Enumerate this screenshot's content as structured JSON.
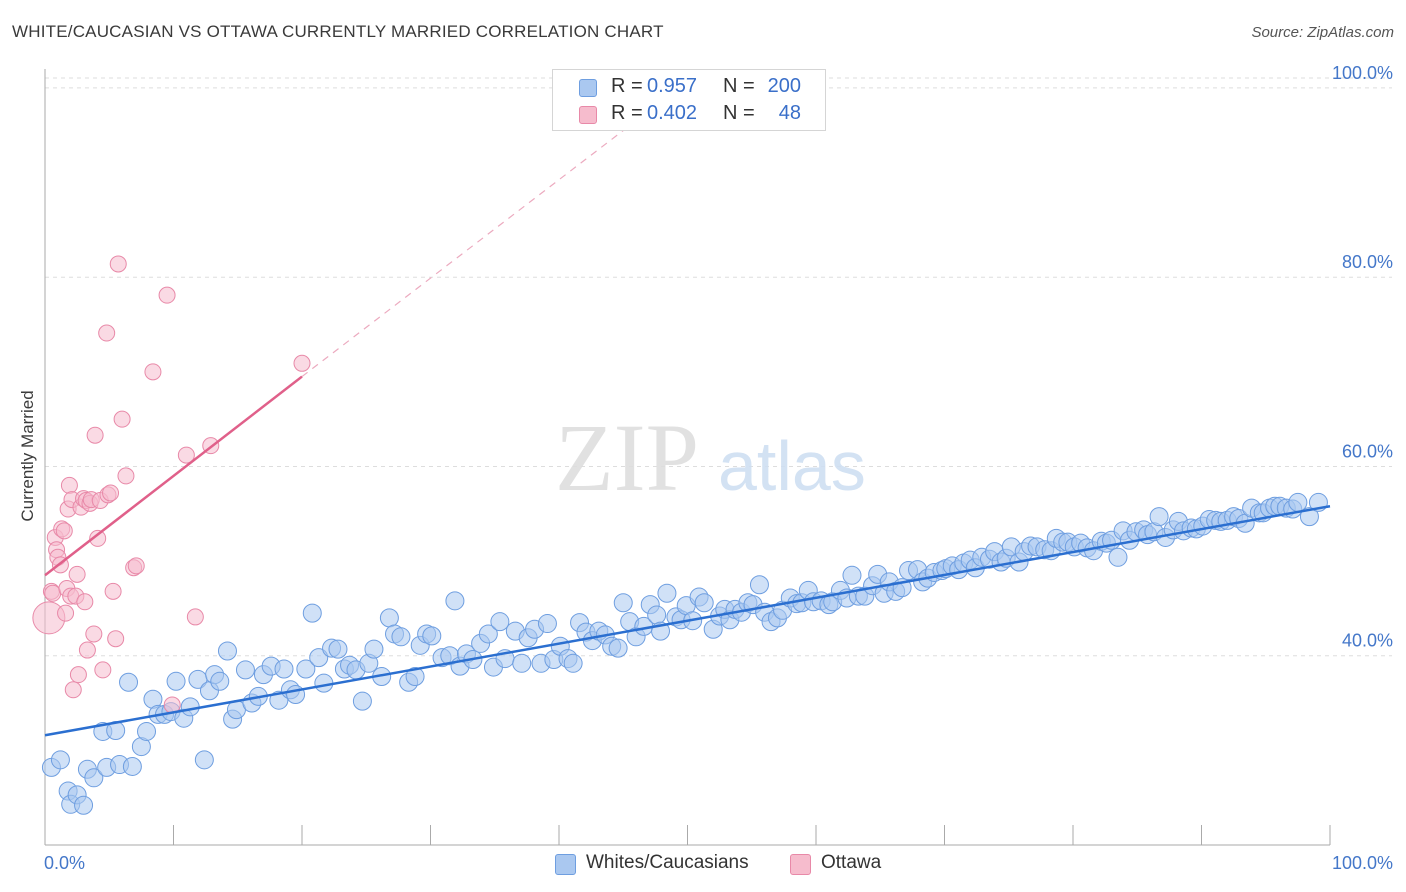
{
  "title": "WHITE/CAUCASIAN VS OTTAWA CURRENTLY MARRIED CORRELATION CHART",
  "source": "Source: ZipAtlas.com",
  "watermark": {
    "zip": "ZIP",
    "atlas": "atlas"
  },
  "legend": {
    "rows": [
      {
        "r_label": "R =",
        "r_value": "0.957",
        "n_label": "N =",
        "n_value": "200"
      },
      {
        "r_label": "R =",
        "r_value": "0.402",
        "n_label": "N =",
        "n_value": "48"
      }
    ]
  },
  "bottom_legend": {
    "series1": "Whites/Caucasians",
    "series2": "Ottawa"
  },
  "colors": {
    "blue_fill": "#aac8f0",
    "blue_stroke": "#6e9ee0",
    "blue_line": "#2b6fd0",
    "pink_fill": "#f6bccd",
    "pink_stroke": "#e889a8",
    "pink_line": "#e0608a",
    "tick_text": "#4477c9",
    "grid": "#dddddd"
  },
  "chart_data": {
    "type": "scatter",
    "title": "WHITE/CAUCASIAN VS OTTAWA CURRENTLY MARRIED CORRELATION CHART",
    "xlabel": "",
    "ylabel": "Currently Married",
    "xlim": [
      0,
      100
    ],
    "ylim": [
      20,
      102
    ],
    "x_tick_labels": [
      "0.0%",
      "100.0%"
    ],
    "y_tick_values": [
      40,
      60,
      80,
      100
    ],
    "y_tick_labels": [
      "40.0%",
      "60.0%",
      "80.0%",
      "100.0%"
    ],
    "grid": true,
    "series": [
      {
        "name": "Whites/Caucasians",
        "r": 0.957,
        "n": 200,
        "trend": {
          "x": [
            0,
            100
          ],
          "y": [
            31.6,
            55.8
          ]
        },
        "points": [
          [
            0.5,
            28.2
          ],
          [
            1.2,
            29.0
          ],
          [
            1.8,
            25.7
          ],
          [
            2.0,
            24.3
          ],
          [
            2.5,
            25.3
          ],
          [
            3.0,
            24.2
          ],
          [
            3.3,
            28.0
          ],
          [
            3.8,
            27.1
          ],
          [
            4.5,
            32.0
          ],
          [
            4.8,
            28.2
          ],
          [
            5.5,
            32.1
          ],
          [
            5.8,
            28.5
          ],
          [
            6.5,
            37.2
          ],
          [
            6.8,
            28.3
          ],
          [
            7.5,
            30.4
          ],
          [
            7.9,
            32.0
          ],
          [
            8.4,
            35.4
          ],
          [
            8.8,
            33.8
          ],
          [
            9.3,
            33.8
          ],
          [
            9.8,
            34.1
          ],
          [
            10.2,
            37.3
          ],
          [
            10.8,
            33.4
          ],
          [
            11.3,
            34.6
          ],
          [
            11.9,
            37.5
          ],
          [
            12.4,
            29.0
          ],
          [
            12.8,
            36.3
          ],
          [
            13.2,
            38.0
          ],
          [
            13.6,
            37.3
          ],
          [
            14.2,
            40.5
          ],
          [
            14.6,
            33.3
          ],
          [
            14.9,
            34.3
          ],
          [
            15.6,
            38.5
          ],
          [
            16.1,
            35.0
          ],
          [
            16.6,
            35.7
          ],
          [
            17.0,
            38.0
          ],
          [
            17.6,
            38.9
          ],
          [
            18.2,
            35.3
          ],
          [
            18.6,
            38.6
          ],
          [
            19.1,
            36.4
          ],
          [
            19.5,
            35.9
          ],
          [
            20.3,
            38.6
          ],
          [
            20.8,
            44.5
          ],
          [
            21.3,
            39.8
          ],
          [
            21.7,
            37.1
          ],
          [
            22.3,
            40.8
          ],
          [
            22.8,
            40.7
          ],
          [
            23.3,
            38.6
          ],
          [
            23.7,
            39.0
          ],
          [
            24.2,
            38.5
          ],
          [
            24.7,
            35.2
          ],
          [
            25.2,
            39.2
          ],
          [
            25.6,
            40.7
          ],
          [
            26.2,
            37.8
          ],
          [
            26.8,
            44.0
          ],
          [
            27.2,
            42.3
          ],
          [
            27.7,
            42.0
          ],
          [
            28.3,
            37.2
          ],
          [
            28.8,
            37.8
          ],
          [
            29.2,
            41.1
          ],
          [
            29.7,
            42.3
          ],
          [
            30.1,
            42.1
          ],
          [
            30.9,
            39.8
          ],
          [
            31.5,
            40.0
          ],
          [
            31.9,
            45.8
          ],
          [
            32.3,
            38.9
          ],
          [
            32.8,
            40.2
          ],
          [
            33.3,
            39.6
          ],
          [
            33.9,
            41.3
          ],
          [
            34.5,
            42.3
          ],
          [
            34.9,
            38.8
          ],
          [
            35.4,
            43.6
          ],
          [
            35.8,
            39.7
          ],
          [
            36.6,
            42.6
          ],
          [
            37.1,
            39.2
          ],
          [
            37.6,
            41.9
          ],
          [
            38.1,
            42.8
          ],
          [
            38.6,
            39.2
          ],
          [
            39.1,
            43.4
          ],
          [
            39.6,
            39.6
          ],
          [
            40.1,
            41.0
          ],
          [
            40.7,
            39.7
          ],
          [
            41.1,
            39.2
          ],
          [
            41.6,
            43.5
          ],
          [
            42.1,
            42.5
          ],
          [
            42.6,
            41.6
          ],
          [
            43.1,
            42.6
          ],
          [
            43.6,
            42.2
          ],
          [
            44.1,
            41.0
          ],
          [
            44.6,
            40.8
          ],
          [
            45.0,
            45.6
          ],
          [
            45.5,
            43.6
          ],
          [
            46.0,
            42.0
          ],
          [
            46.6,
            43.1
          ],
          [
            47.1,
            45.4
          ],
          [
            47.6,
            44.3
          ],
          [
            47.9,
            42.6
          ],
          [
            48.4,
            46.6
          ],
          [
            49.1,
            44.1
          ],
          [
            49.5,
            43.8
          ],
          [
            49.9,
            45.3
          ],
          [
            50.4,
            43.7
          ],
          [
            50.9,
            46.2
          ],
          [
            51.3,
            45.6
          ],
          [
            52.0,
            42.8
          ],
          [
            52.5,
            44.2
          ],
          [
            52.9,
            44.9
          ],
          [
            53.3,
            43.8
          ],
          [
            53.7,
            44.9
          ],
          [
            54.2,
            44.6
          ],
          [
            54.7,
            45.6
          ],
          [
            55.1,
            45.4
          ],
          [
            55.6,
            47.5
          ],
          [
            56.0,
            44.6
          ],
          [
            56.5,
            43.6
          ],
          [
            57.0,
            44.0
          ],
          [
            57.4,
            44.8
          ],
          [
            58.0,
            46.1
          ],
          [
            58.5,
            45.5
          ],
          [
            58.9,
            45.6
          ],
          [
            59.4,
            46.9
          ],
          [
            59.8,
            45.7
          ],
          [
            60.4,
            45.8
          ],
          [
            61.0,
            45.4
          ],
          [
            61.3,
            45.7
          ],
          [
            61.9,
            46.9
          ],
          [
            62.4,
            46.1
          ],
          [
            62.8,
            48.5
          ],
          [
            63.3,
            46.3
          ],
          [
            63.8,
            46.3
          ],
          [
            64.4,
            47.4
          ],
          [
            64.8,
            48.6
          ],
          [
            65.3,
            46.6
          ],
          [
            65.7,
            47.8
          ],
          [
            66.2,
            46.8
          ],
          [
            66.7,
            47.2
          ],
          [
            67.2,
            49.0
          ],
          [
            67.9,
            49.1
          ],
          [
            68.3,
            47.8
          ],
          [
            68.7,
            48.2
          ],
          [
            69.2,
            48.8
          ],
          [
            69.8,
            49.0
          ],
          [
            70.1,
            49.2
          ],
          [
            70.6,
            49.5
          ],
          [
            71.1,
            49.1
          ],
          [
            71.5,
            49.8
          ],
          [
            72.0,
            50.1
          ],
          [
            72.4,
            49.3
          ],
          [
            72.9,
            50.4
          ],
          [
            73.5,
            50.2
          ],
          [
            73.9,
            51.0
          ],
          [
            74.4,
            49.9
          ],
          [
            74.8,
            50.3
          ],
          [
            75.2,
            51.5
          ],
          [
            75.8,
            49.9
          ],
          [
            76.2,
            51.0
          ],
          [
            76.7,
            51.6
          ],
          [
            77.2,
            51.5
          ],
          [
            77.8,
            51.2
          ],
          [
            78.3,
            51.1
          ],
          [
            78.7,
            52.4
          ],
          [
            79.2,
            52.0
          ],
          [
            79.6,
            52.0
          ],
          [
            80.1,
            51.5
          ],
          [
            80.6,
            51.9
          ],
          [
            81.1,
            51.4
          ],
          [
            81.6,
            51.1
          ],
          [
            82.2,
            52.1
          ],
          [
            82.6,
            51.9
          ],
          [
            83.0,
            52.2
          ],
          [
            83.5,
            50.4
          ],
          [
            83.9,
            53.2
          ],
          [
            84.4,
            52.2
          ],
          [
            84.9,
            53.1
          ],
          [
            85.5,
            53.3
          ],
          [
            85.8,
            52.8
          ],
          [
            86.3,
            53.1
          ],
          [
            86.7,
            54.7
          ],
          [
            87.2,
            52.5
          ],
          [
            87.8,
            53.3
          ],
          [
            88.2,
            54.2
          ],
          [
            88.6,
            53.2
          ],
          [
            89.2,
            53.5
          ],
          [
            89.6,
            53.4
          ],
          [
            90.1,
            53.7
          ],
          [
            90.6,
            54.4
          ],
          [
            91.1,
            54.3
          ],
          [
            91.5,
            54.2
          ],
          [
            92.0,
            54.3
          ],
          [
            92.5,
            54.7
          ],
          [
            92.9,
            54.5
          ],
          [
            93.4,
            54.0
          ],
          [
            93.9,
            55.6
          ],
          [
            94.5,
            55.1
          ],
          [
            94.8,
            55.1
          ],
          [
            95.3,
            55.6
          ],
          [
            95.7,
            55.8
          ],
          [
            96.1,
            55.8
          ],
          [
            96.6,
            55.6
          ],
          [
            97.1,
            55.5
          ],
          [
            97.5,
            56.2
          ],
          [
            98.4,
            54.7
          ],
          [
            99.1,
            56.2
          ]
        ]
      },
      {
        "name": "Ottawa",
        "r": 0.402,
        "n": 48,
        "trend": {
          "x": [
            0,
            20
          ],
          "y": [
            48.5,
            69.5
          ]
        },
        "trend_extension": {
          "x": [
            20,
            45
          ],
          "y": [
            69.5,
            95.5
          ]
        },
        "points": [
          [
            0.3,
            44.0
          ],
          [
            0.5,
            46.8
          ],
          [
            0.6,
            46.6
          ],
          [
            0.8,
            52.5
          ],
          [
            0.9,
            51.2
          ],
          [
            1.0,
            50.4
          ],
          [
            1.2,
            49.6
          ],
          [
            1.3,
            53.4
          ],
          [
            1.5,
            53.2
          ],
          [
            1.6,
            44.5
          ],
          [
            1.7,
            47.1
          ],
          [
            1.8,
            55.5
          ],
          [
            1.9,
            58.0
          ],
          [
            2.0,
            46.3
          ],
          [
            2.1,
            56.5
          ],
          [
            2.2,
            36.4
          ],
          [
            2.4,
            46.3
          ],
          [
            2.5,
            48.6
          ],
          [
            2.6,
            38.0
          ],
          [
            2.8,
            55.7
          ],
          [
            3.0,
            56.6
          ],
          [
            3.1,
            45.7
          ],
          [
            3.2,
            56.4
          ],
          [
            3.3,
            40.6
          ],
          [
            3.5,
            56.1
          ],
          [
            3.6,
            56.5
          ],
          [
            3.8,
            42.3
          ],
          [
            3.9,
            63.3
          ],
          [
            4.1,
            52.4
          ],
          [
            4.3,
            56.4
          ],
          [
            4.5,
            38.5
          ],
          [
            4.8,
            74.1
          ],
          [
            4.9,
            57.0
          ],
          [
            5.1,
            57.2
          ],
          [
            5.3,
            46.8
          ],
          [
            5.5,
            41.8
          ],
          [
            5.7,
            81.4
          ],
          [
            6.0,
            65.0
          ],
          [
            6.3,
            59.0
          ],
          [
            6.9,
            49.3
          ],
          [
            7.1,
            49.5
          ],
          [
            8.4,
            70.0
          ],
          [
            9.5,
            78.1
          ],
          [
            9.9,
            34.8
          ],
          [
            11.0,
            61.2
          ],
          [
            11.7,
            44.1
          ],
          [
            12.9,
            62.2
          ],
          [
            20.0,
            70.9
          ]
        ]
      }
    ]
  }
}
